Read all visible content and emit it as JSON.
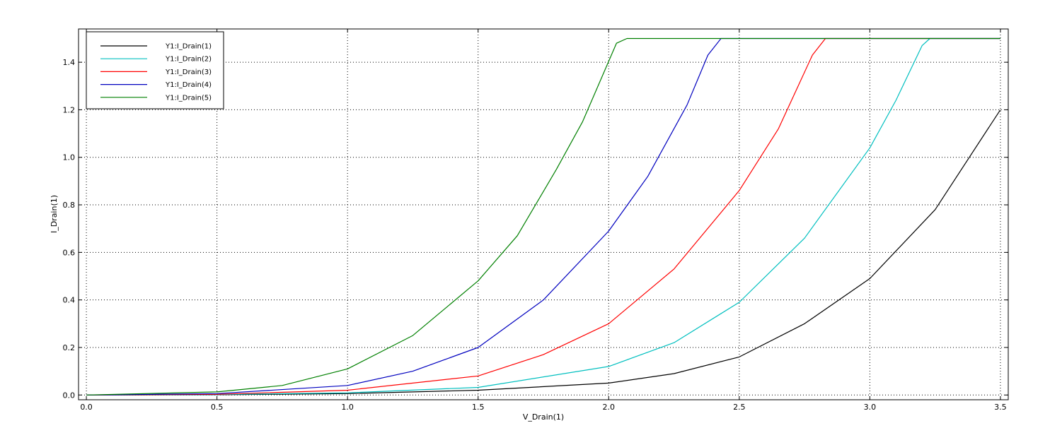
{
  "chart_data": {
    "type": "line",
    "xlabel": "V_Drain(1)",
    "ylabel": "I_Drain(1)",
    "xlim": [
      -0.03,
      3.53
    ],
    "ylim": [
      -0.02,
      1.54
    ],
    "xticks": [
      0.0,
      0.5,
      1.0,
      1.5,
      2.0,
      2.5,
      3.0,
      3.5
    ],
    "xtick_labels": [
      "0.0",
      "0.5",
      "1.0",
      "1.5",
      "2.0",
      "2.5",
      "3.0",
      "3.5"
    ],
    "yticks": [
      0.0,
      0.2,
      0.4,
      0.6,
      0.8,
      1.0,
      1.2,
      1.4
    ],
    "ytick_labels": [
      "0.0",
      "0.2",
      "0.4",
      "0.6",
      "0.8",
      "1.0",
      "1.2",
      "1.4"
    ],
    "grid": true,
    "grid_style": "dotted",
    "legend_position": "top-left",
    "series": [
      {
        "name": "Y1:I_Drain(1)",
        "color": "#000000",
        "x": [
          0.0,
          0.5,
          1.0,
          1.5,
          2.0,
          2.25,
          2.5,
          2.75,
          3.0,
          3.25,
          3.5
        ],
        "y": [
          0.0,
          0.001,
          0.006,
          0.02,
          0.05,
          0.09,
          0.16,
          0.3,
          0.49,
          0.78,
          1.2
        ]
      },
      {
        "name": "Y1:I_Drain(2)",
        "color": "#00bfbf",
        "x": [
          0.0,
          0.5,
          1.0,
          1.5,
          2.0,
          2.25,
          2.5,
          2.75,
          3.0,
          3.1,
          3.2,
          3.23,
          3.5
        ],
        "y": [
          0.0,
          0.002,
          0.009,
          0.032,
          0.12,
          0.22,
          0.39,
          0.66,
          1.04,
          1.24,
          1.47,
          1.5,
          1.5
        ]
      },
      {
        "name": "Y1:I_Drain(3)",
        "color": "#ff0000",
        "x": [
          0.0,
          0.5,
          1.0,
          1.5,
          1.75,
          2.0,
          2.25,
          2.5,
          2.65,
          2.78,
          2.83,
          3.5
        ],
        "y": [
          0.0,
          0.003,
          0.02,
          0.08,
          0.17,
          0.3,
          0.53,
          0.86,
          1.12,
          1.43,
          1.5,
          1.5
        ]
      },
      {
        "name": "Y1:I_Drain(4)",
        "color": "#0000bf",
        "x": [
          0.0,
          0.5,
          1.0,
          1.25,
          1.5,
          1.75,
          2.0,
          2.15,
          2.3,
          2.38,
          2.43,
          3.5
        ],
        "y": [
          0.0,
          0.006,
          0.04,
          0.1,
          0.2,
          0.4,
          0.69,
          0.92,
          1.22,
          1.43,
          1.5,
          1.5
        ]
      },
      {
        "name": "Y1:I_Drain(5)",
        "color": "#008000",
        "x": [
          0.0,
          0.5,
          0.75,
          1.0,
          1.25,
          1.5,
          1.65,
          1.8,
          1.9,
          2.03,
          2.07,
          3.5
        ],
        "y": [
          0.0,
          0.013,
          0.04,
          0.11,
          0.25,
          0.48,
          0.67,
          0.95,
          1.15,
          1.48,
          1.5,
          1.5
        ]
      }
    ]
  }
}
